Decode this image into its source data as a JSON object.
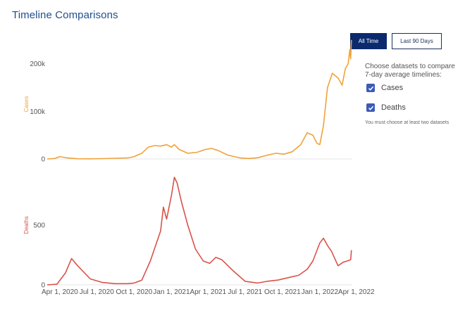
{
  "title": "Timeline Comparisons",
  "buttons": {
    "all_time": "All Time",
    "last_90": "Last 90 Days"
  },
  "sidebar": {
    "prompt": "Choose datasets to compare 7-day average timelines:",
    "datasets": [
      {
        "label": "Cases",
        "checked": true
      },
      {
        "label": "Deaths",
        "checked": true
      }
    ],
    "note": "You must choose at least two datasets"
  },
  "colors": {
    "cases": "#f0a23a",
    "deaths": "#d9534a",
    "title": "#1f4e8c",
    "button_active": "#0b2a6e"
  },
  "icons": {
    "checkbox": "check-icon"
  },
  "chart_data": [
    {
      "type": "line",
      "series": [
        {
          "name": "Cases",
          "x": [
            "2020-03-01",
            "2020-03-20",
            "2020-04-01",
            "2020-04-20",
            "2020-05-15",
            "2020-06-15",
            "2020-07-15",
            "2020-08-15",
            "2020-09-15",
            "2020-10-01",
            "2020-10-20",
            "2020-11-05",
            "2020-11-20",
            "2020-12-05",
            "2020-12-20",
            "2021-01-01",
            "2021-01-08",
            "2021-01-20",
            "2021-02-10",
            "2021-03-05",
            "2021-03-25",
            "2021-04-10",
            "2021-04-25",
            "2021-05-20",
            "2021-06-20",
            "2021-07-10",
            "2021-08-01",
            "2021-08-25",
            "2021-09-15",
            "2021-10-05",
            "2021-10-25",
            "2021-11-15",
            "2021-12-01",
            "2021-12-15",
            "2021-12-25",
            "2022-01-01",
            "2022-01-10",
            "2022-01-20",
            "2022-02-01",
            "2022-02-15",
            "2022-02-25",
            "2022-03-05",
            "2022-03-12",
            "2022-03-16",
            "2022-03-18",
            "2022-03-20"
          ],
          "values": [
            0,
            1000,
            5000,
            2000,
            500,
            300,
            800,
            1500,
            2000,
            5000,
            12000,
            25000,
            28000,
            27000,
            30000,
            25000,
            30000,
            20000,
            12000,
            14000,
            20000,
            22000,
            18000,
            8000,
            2000,
            1000,
            2500,
            8000,
            12000,
            10000,
            15000,
            30000,
            55000,
            50000,
            33000,
            30000,
            70000,
            150000,
            180000,
            170000,
            155000,
            190000,
            200000,
            230000,
            210000,
            250000
          ]
        }
      ],
      "ylabel": "Cases",
      "y_ticks": [
        0,
        100000,
        200000
      ],
      "y_tick_labels": [
        "0",
        "100k",
        "200k"
      ],
      "ylim": [
        0,
        260000
      ],
      "xlim": [
        "2020-03-01",
        "2022-03-22"
      ],
      "grid": false
    },
    {
      "type": "line",
      "series": [
        {
          "name": "Deaths",
          "x": [
            "2020-03-01",
            "2020-03-25",
            "2020-04-15",
            "2020-04-30",
            "2020-05-15",
            "2020-06-15",
            "2020-07-15",
            "2020-08-15",
            "2020-09-15",
            "2020-10-01",
            "2020-10-20",
            "2020-11-10",
            "2020-11-25",
            "2020-12-05",
            "2020-12-12",
            "2020-12-20",
            "2021-01-01",
            "2021-01-08",
            "2021-01-15",
            "2021-01-25",
            "2021-02-10",
            "2021-03-01",
            "2021-03-20",
            "2021-04-05",
            "2021-04-20",
            "2021-05-05",
            "2021-06-01",
            "2021-07-01",
            "2021-08-01",
            "2021-08-25",
            "2021-09-20",
            "2021-10-15",
            "2021-11-10",
            "2021-12-01",
            "2021-12-15",
            "2022-01-01",
            "2022-01-10",
            "2022-01-20",
            "2022-01-30",
            "2022-02-15",
            "2022-02-28",
            "2022-03-10",
            "2022-03-18",
            "2022-03-20"
          ],
          "values": [
            0,
            5,
            100,
            220,
            160,
            50,
            20,
            10,
            10,
            15,
            40,
            200,
            350,
            450,
            650,
            550,
            750,
            900,
            850,
            700,
            500,
            300,
            200,
            180,
            230,
            210,
            120,
            30,
            15,
            30,
            40,
            60,
            80,
            130,
            200,
            350,
            390,
            330,
            280,
            160,
            190,
            200,
            210,
            290
          ]
        }
      ],
      "ylabel": "Deaths",
      "y_ticks": [
        0,
        500
      ],
      "y_tick_labels": [
        "0",
        "500"
      ],
      "ylim": [
        0,
        1000
      ],
      "xlim": [
        "2020-03-01",
        "2022-03-22"
      ],
      "x_ticks": [
        "2020-04-01",
        "2020-07-01",
        "2020-10-01",
        "2021-01-01",
        "2021-04-01",
        "2021-07-01",
        "2021-10-01",
        "2022-01-01",
        "2022-04-01"
      ],
      "x_tick_labels": [
        "Apr 1, 2020",
        "Jul 1, 2020",
        "Oct 1, 2020",
        "Jan 1, 2021",
        "Apr 1, 2021",
        "Jul 1, 2021",
        "Oct 1, 2021",
        "Jan 1, 2022",
        "Apr 1, 2022"
      ],
      "grid": false
    }
  ]
}
